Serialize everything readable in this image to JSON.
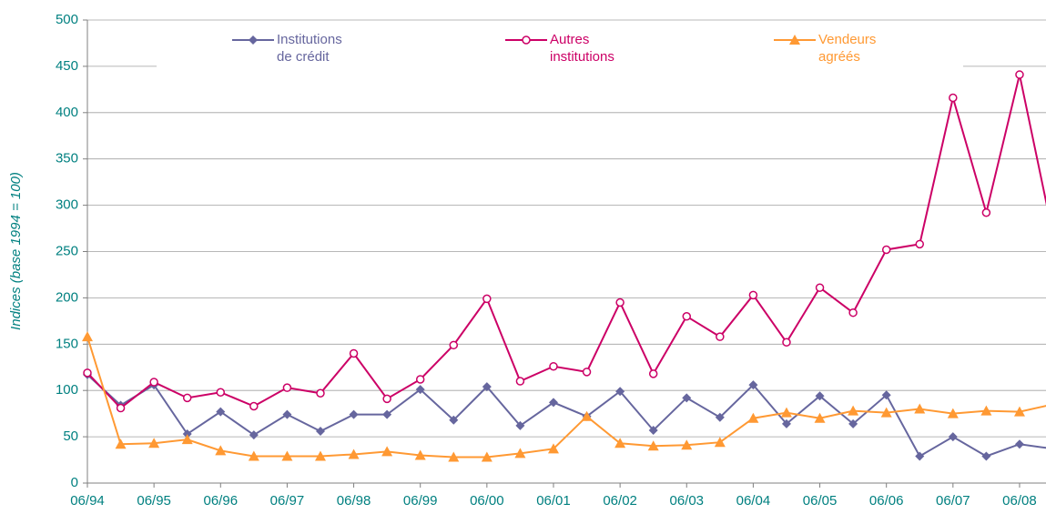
{
  "chart_data": {
    "type": "line",
    "y_label": "Indices (base 1994 = 100)",
    "categories": [
      "06/94",
      null,
      "06/95",
      null,
      "06/96",
      null,
      "06/97",
      null,
      "06/98",
      null,
      "06/99",
      null,
      "06/00",
      null,
      "06/01",
      null,
      "06/02",
      null,
      "06/03",
      null,
      "06/04",
      null,
      "06/05",
      null,
      "06/06",
      null,
      "06/07",
      null,
      "06/08",
      null
    ],
    "series": [
      {
        "name": "Institutions de crédit",
        "color": "#66669e",
        "marker": "diamond",
        "values": [
          117,
          84,
          106,
          53,
          77,
          52,
          74,
          56,
          74,
          74,
          101,
          68,
          104,
          62,
          87,
          72,
          99,
          57,
          92,
          71,
          106,
          64,
          94,
          64,
          95,
          29,
          50,
          29,
          42,
          37
        ]
      },
      {
        "name": "Autres institutions",
        "color": "#cc0066",
        "marker": "circle",
        "values": [
          119,
          81,
          109,
          92,
          98,
          83,
          103,
          97,
          140,
          91,
          112,
          149,
          199,
          110,
          126,
          120,
          195,
          118,
          180,
          158,
          203,
          152,
          211,
          184,
          252,
          258,
          416,
          292,
          441,
          269
        ]
      },
      {
        "name": "Vendeurs agréés",
        "color": "#ff9933",
        "marker": "triangle",
        "values": [
          158,
          42,
          43,
          47,
          35,
          29,
          29,
          29,
          31,
          34,
          30,
          28,
          28,
          32,
          37,
          72,
          43,
          40,
          41,
          44,
          70,
          76,
          70,
          78,
          76,
          80,
          75,
          78,
          77,
          85
        ]
      }
    ],
    "ylim": [
      0,
      500
    ],
    "yticks": [
      0,
      50,
      100,
      150,
      200,
      250,
      300,
      350,
      400,
      450,
      500
    ],
    "grid": true,
    "legend": "top"
  }
}
